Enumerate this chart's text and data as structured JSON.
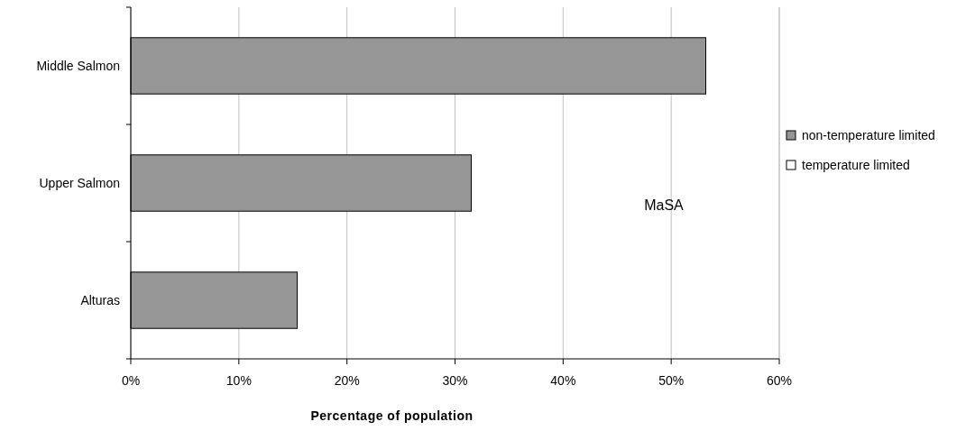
{
  "chart_data": {
    "type": "bar",
    "orientation": "horizontal",
    "categories": [
      "Middle Salmon",
      "Upper Salmon",
      "Alturas"
    ],
    "series": [
      {
        "name": "non-temperature limited",
        "color": "#969696",
        "values": [
          53.2,
          31.5,
          15.4
        ]
      },
      {
        "name": "temperature limited",
        "color": "#ffffff",
        "values": [
          0,
          0,
          0
        ]
      }
    ],
    "xlim": [
      0,
      60
    ],
    "xticks": [
      {
        "value": 0,
        "label": "0%"
      },
      {
        "value": 10,
        "label": "10%"
      },
      {
        "value": 20,
        "label": "20%"
      },
      {
        "value": 30,
        "label": "30%"
      },
      {
        "value": 40,
        "label": "40%"
      },
      {
        "value": 50,
        "label": "50%"
      },
      {
        "value": 60,
        "label": "60%"
      }
    ],
    "xlabel": "Percentage of population",
    "annotations": [
      "MaSA"
    ],
    "grid": "x",
    "legend": "right"
  }
}
